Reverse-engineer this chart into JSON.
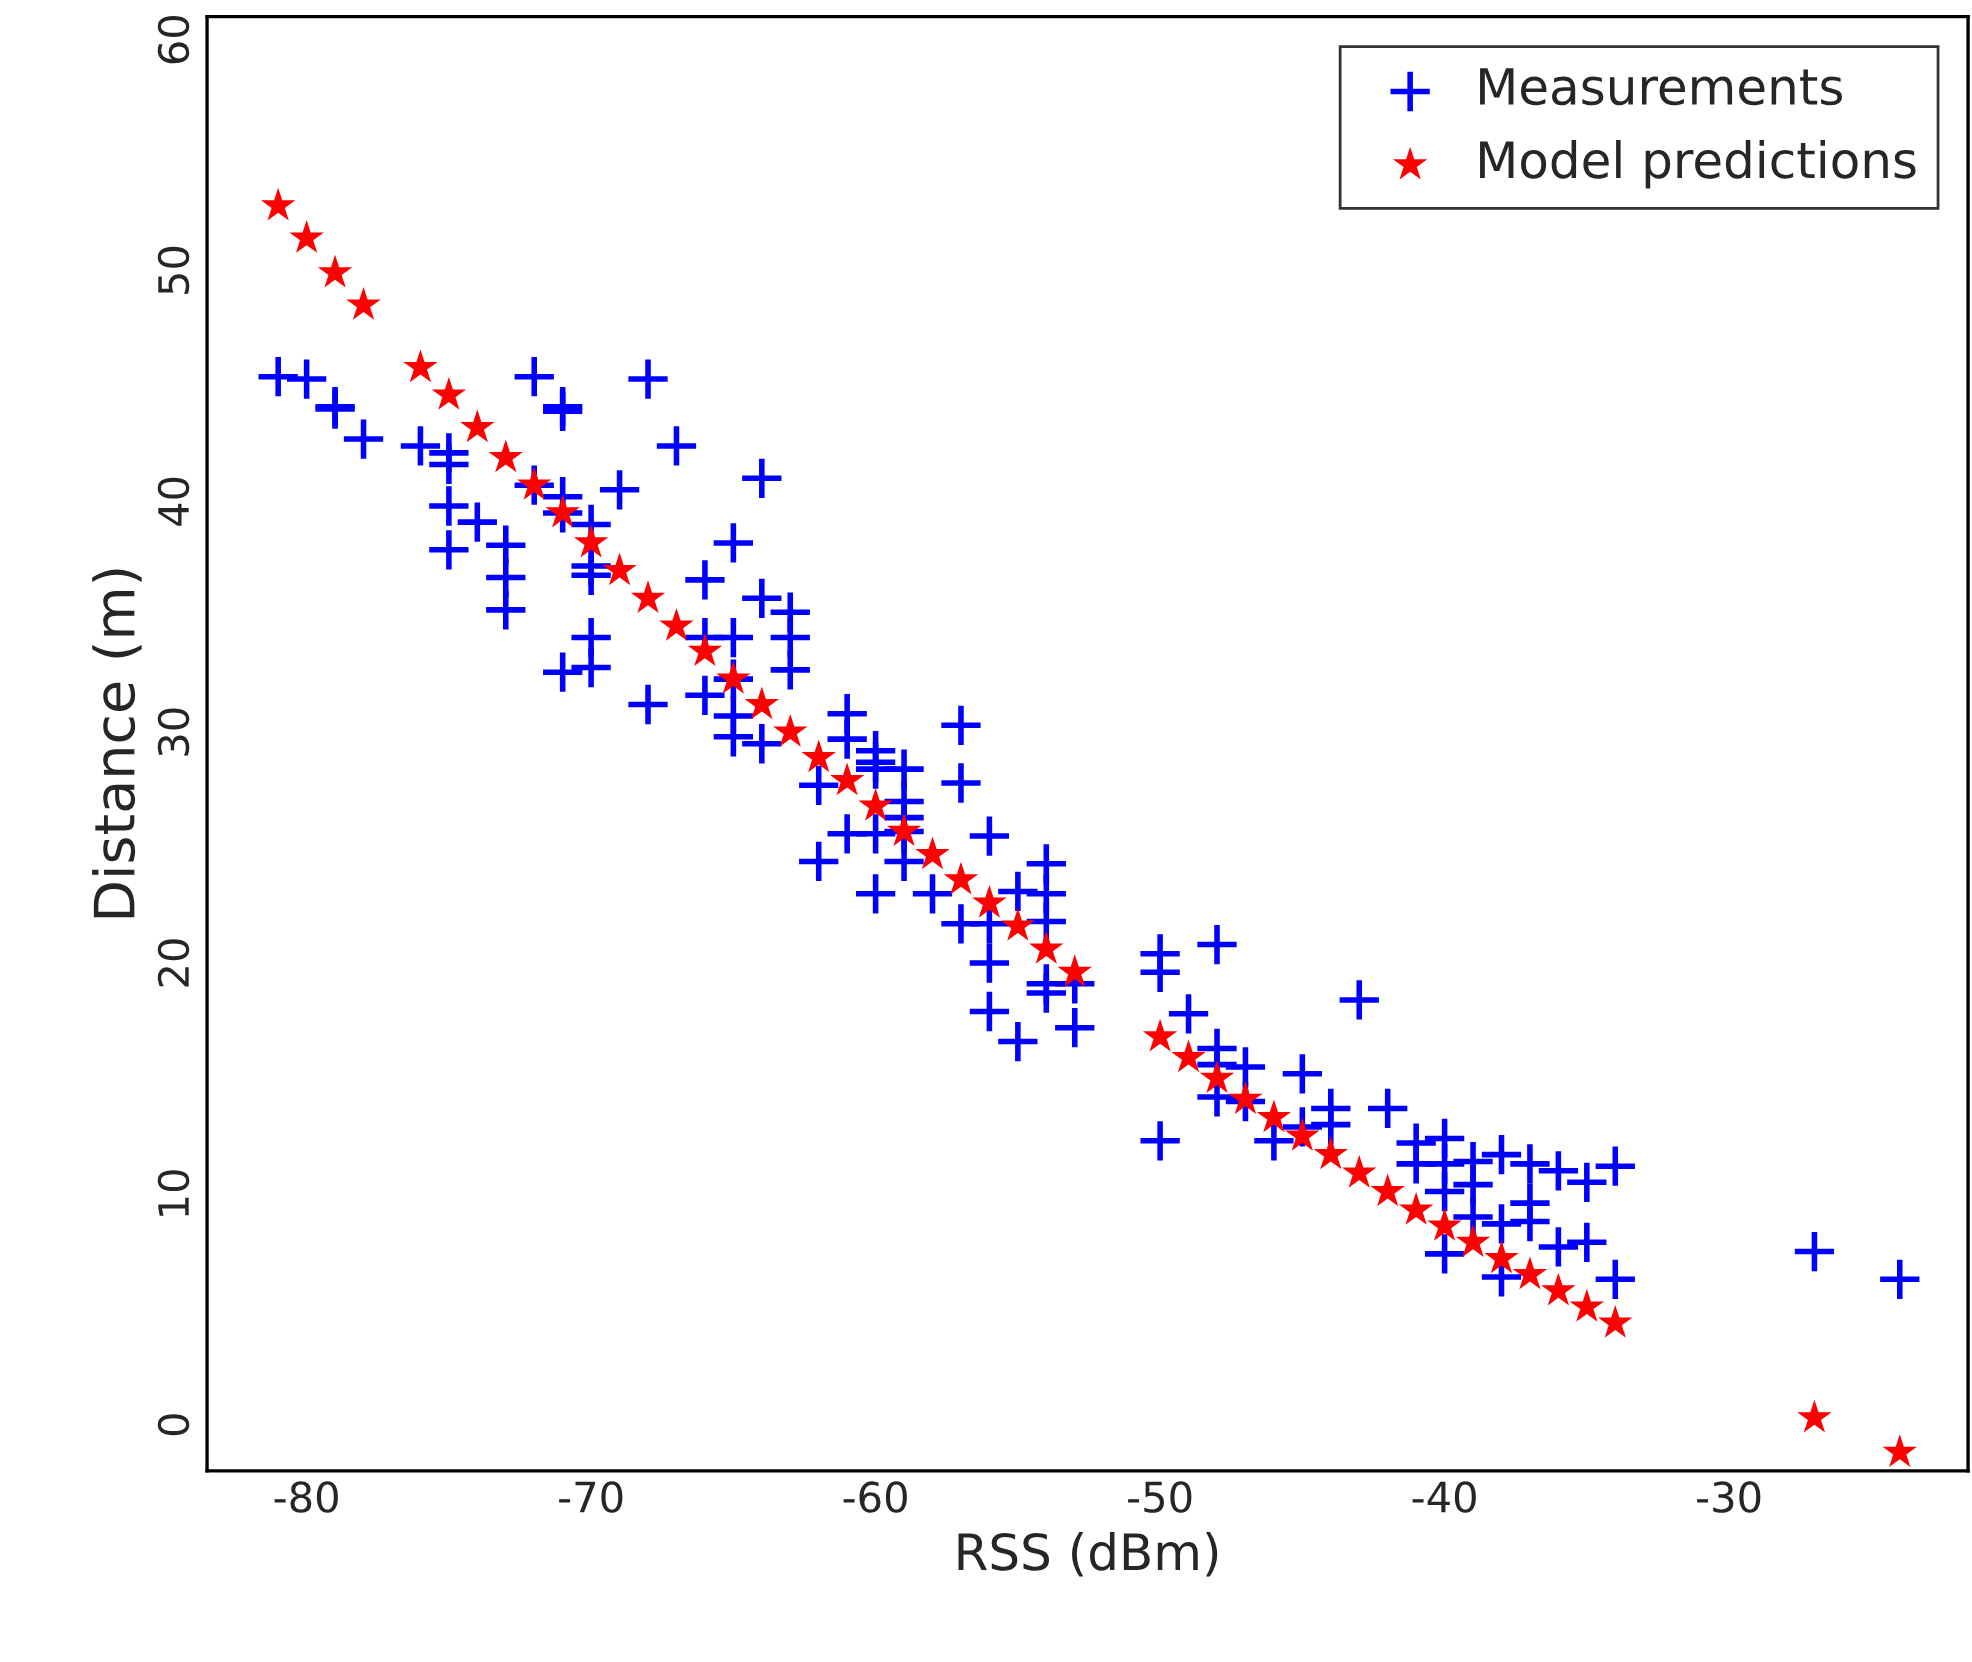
{
  "chart_data": {
    "type": "scatter",
    "xlabel": "RSS (dBm)",
    "ylabel": "Distance (m)",
    "xlim": [
      -83.5,
      -21.6
    ],
    "ylim": [
      -2,
      61
    ],
    "xticks": [
      -80,
      -70,
      -60,
      -50,
      -40,
      -30
    ],
    "yticks": [
      0,
      10,
      20,
      30,
      40,
      50,
      60
    ],
    "grid": false,
    "legend": "top right",
    "series": [
      {
        "name": "Measurements",
        "color": "#0000ff",
        "marker": "cross",
        "x": [
          -81,
          -80,
          -79,
          -79,
          -78,
          -76,
          -75,
          -75,
          -75,
          -75,
          -74,
          -73,
          -73,
          -73,
          -72,
          -72,
          -71,
          -71,
          -71,
          -71,
          -71,
          -70,
          -70,
          -70,
          -70,
          -70,
          -69,
          -68,
          -68,
          -67,
          -66,
          -66,
          -66,
          -65,
          -65,
          -65,
          -65,
          -65,
          -64,
          -64,
          -64,
          -63,
          -63,
          -63,
          -62,
          -62,
          -61,
          -61,
          -61,
          -60,
          -60,
          -60,
          -60,
          -60,
          -59,
          -59,
          -59,
          -59,
          -59,
          -58,
          -57,
          -57,
          -57,
          -56,
          -56,
          -56,
          -56,
          -55,
          -55,
          -54,
          -54,
          -54,
          -54,
          -54,
          -53,
          -53,
          -50,
          -50,
          -50,
          -49,
          -48,
          -48,
          -48,
          -48,
          -47,
          -47,
          -46,
          -45,
          -45,
          -44,
          -44,
          -43,
          -42,
          -41,
          -41,
          -40,
          -40,
          -40,
          -40,
          -39,
          -39,
          -39,
          -38,
          -38,
          -38,
          -37,
          -37,
          -37,
          -36,
          -36,
          -35,
          -35,
          -34,
          -34,
          -27,
          -24
        ],
        "values": [
          45.4,
          45.3,
          44.0,
          44.1,
          42.7,
          42.4,
          42.1,
          41.6,
          39.8,
          37.9,
          39.1,
          38.1,
          36.7,
          35.3,
          45.4,
          40.7,
          43.9,
          44.1,
          40.2,
          39.5,
          32.6,
          39.0,
          37.2,
          36.8,
          34.1,
          32.8,
          40.5,
          45.3,
          31.2,
          42.4,
          36.6,
          34.1,
          31.6,
          38.2,
          34.1,
          32.3,
          30.7,
          29.8,
          41.0,
          35.8,
          29.5,
          35.2,
          34.1,
          32.7,
          27.7,
          24.4,
          30.8,
          29.7,
          25.6,
          29.2,
          28.4,
          28.7,
          25.6,
          23.0,
          28.4,
          27.0,
          26.3,
          24.4,
          25.7,
          23.0,
          30.3,
          27.8,
          21.7,
          25.5,
          21.7,
          20.0,
          17.9,
          23.1,
          16.6,
          24.3,
          23.0,
          21.8,
          19.1,
          18.7,
          19.1,
          17.2,
          20.4,
          19.6,
          12.3,
          17.8,
          20.8,
          16.3,
          15.6,
          14.2,
          15.5,
          14.0,
          12.3,
          15.2,
          12.9,
          13.7,
          13.0,
          18.4,
          13.7,
          12.2,
          11.3,
          12.4,
          11.3,
          10.1,
          7.4,
          11.4,
          10.4,
          9.0,
          11.7,
          8.7,
          6.4,
          11.3,
          9.6,
          8.8,
          11.0,
          7.7,
          10.5,
          7.9,
          11.2,
          6.3,
          7.5,
          6.3
        ]
      },
      {
        "name": "Model predictions",
        "color": "#ff0000",
        "marker": "star",
        "x": [
          -81,
          -80,
          -79,
          -78,
          -76,
          -75,
          -74,
          -73,
          -72,
          -71,
          -70,
          -69,
          -68,
          -67,
          -66,
          -65,
          -64,
          -63,
          -62,
          -61,
          -60,
          -59,
          -58,
          -57,
          -56,
          -55,
          -54,
          -53,
          -50,
          -49,
          -48,
          -47,
          -46,
          -45,
          -44,
          -43,
          -42,
          -41,
          -40,
          -39,
          -38,
          -37,
          -36,
          -35,
          -34,
          -27,
          -24
        ],
        "values": [
          52.8,
          51.4,
          49.9,
          48.5,
          45.8,
          44.6,
          43.2,
          41.9,
          40.7,
          39.5,
          38.2,
          37.0,
          35.8,
          34.6,
          33.5,
          32.3,
          31.2,
          30.0,
          28.9,
          27.9,
          26.8,
          25.7,
          24.7,
          23.6,
          22.6,
          21.6,
          20.6,
          19.6,
          16.8,
          15.9,
          15.0,
          14.1,
          13.3,
          12.5,
          11.7,
          10.9,
          10.1,
          9.3,
          8.6,
          7.9,
          7.2,
          6.5,
          5.8,
          5.1,
          4.4,
          0.3,
          -1.2
        ]
      }
    ]
  }
}
